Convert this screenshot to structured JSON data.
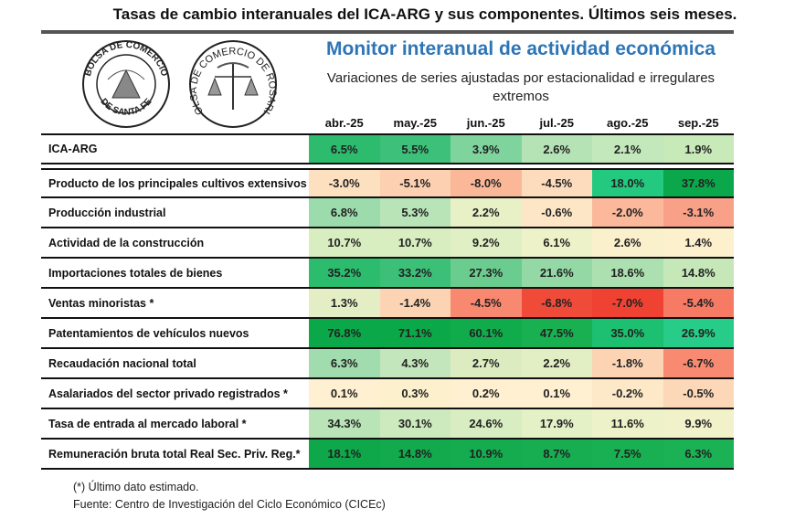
{
  "title": "Tasas de cambio interanuales del ICA-ARG y sus componentes. Últimos seis meses.",
  "logos": [
    {
      "name": "bolsa-santa-fe-logo",
      "top_text": "BOLSA DE COMERCIO",
      "bottom_text": "DE SANTA FE"
    },
    {
      "name": "bolsa-rosario-logo",
      "text": "BOLSA DE COMERCIO DE ROSARIO"
    }
  ],
  "monitor_title": "Monitor interanual de actividad económica",
  "monitor_title_color": "#2e75b6",
  "subtitle": "Variaciones de series ajustadas por estacionalidad e irregulares extremos",
  "months": [
    "abr.-25",
    "may.-25",
    "jun.-25",
    "jul.-25",
    "ago.-25",
    "sep.-25"
  ],
  "rows": [
    {
      "label": "ICA-ARG",
      "values": [
        "6.5%",
        "5.5%",
        "3.9%",
        "2.6%",
        "2.1%",
        "1.9%"
      ],
      "colors": [
        "#2dbb6e",
        "#3cc07a",
        "#7fd49e",
        "#b6e3b6",
        "#c3e8bc",
        "#c8eab8"
      ]
    },
    {
      "label": "Producto de los principales cultivos extensivos",
      "values": [
        "-3.0%",
        "-5.1%",
        "-8.0%",
        "-4.5%",
        "18.0%",
        "37.8%"
      ],
      "colors": [
        "#fde0c0",
        "#fcd0b0",
        "#fbb898",
        "#fcdcbc",
        "#22c97e",
        "#0aa84a"
      ]
    },
    {
      "label": "Producción industrial",
      "values": [
        "6.8%",
        "5.3%",
        "2.2%",
        "-0.6%",
        "-2.0%",
        "-3.1%"
      ],
      "colors": [
        "#9cdcac",
        "#b9e4b8",
        "#e8f0c6",
        "#fde6c6",
        "#fbb89a",
        "#f9a088"
      ]
    },
    {
      "label": "Actividad de la construcción",
      "values": [
        "10.7%",
        "10.7%",
        "9.2%",
        "6.1%",
        "2.6%",
        "1.4%"
      ],
      "colors": [
        "#d9eec0",
        "#d9eec0",
        "#e0f0c4",
        "#eef2c8",
        "#faf0cc",
        "#fdf0cc"
      ]
    },
    {
      "label": "Importaciones totales de bienes",
      "values": [
        "35.2%",
        "33.2%",
        "27.3%",
        "21.6%",
        "18.6%",
        "14.8%"
      ],
      "colors": [
        "#2cbc6e",
        "#3cc078",
        "#6acc8e",
        "#94d8a6",
        "#ace0b0",
        "#c6e8b8"
      ]
    },
    {
      "label": "Ventas minoristas *",
      "values": [
        "1.3%",
        "-1.4%",
        "-4.5%",
        "-6.8%",
        "-7.0%",
        "-5.4%"
      ],
      "colors": [
        "#e4eec4",
        "#fcd4b4",
        "#f88870",
        "#f04a38",
        "#f04232",
        "#f67a64"
      ]
    },
    {
      "label": "Patentamientos de vehículos nuevos",
      "values": [
        "76.8%",
        "71.1%",
        "60.1%",
        "47.5%",
        "35.0%",
        "26.9%"
      ],
      "colors": [
        "#0aa848",
        "#0aa848",
        "#10ac4c",
        "#18b050",
        "#1cc070",
        "#26cc88"
      ]
    },
    {
      "label": "Recaudación nacional total",
      "values": [
        "6.3%",
        "4.3%",
        "2.7%",
        "2.2%",
        "-1.8%",
        "-6.7%"
      ],
      "colors": [
        "#a0dcae",
        "#c4e6bc",
        "#dcecc0",
        "#e2eec4",
        "#fcd4b4",
        "#f88a72"
      ]
    },
    {
      "label": "Asalariados del sector privado registrados *",
      "values": [
        "0.1%",
        "0.3%",
        "0.2%",
        "0.1%",
        "-0.2%",
        "-0.5%"
      ],
      "colors": [
        "#fef0d0",
        "#fdf0cc",
        "#fef0d0",
        "#fef0d0",
        "#fde8c8",
        "#fcd8b8"
      ]
    },
    {
      "label": "Tasa de entrada al mercado laboral *",
      "values": [
        "34.3%",
        "30.1%",
        "24.6%",
        "17.9%",
        "11.6%",
        "9.9%"
      ],
      "colors": [
        "#b8e4b8",
        "#cceabe",
        "#d8eec2",
        "#e4f0c6",
        "#eef2c8",
        "#f2f2ca"
      ]
    },
    {
      "label": "Remuneración bruta total Real Sec. Priv. Reg.*",
      "values": [
        "18.1%",
        "14.8%",
        "10.9%",
        "8.7%",
        "7.5%",
        "6.3%"
      ],
      "colors": [
        "#0ea84a",
        "#12aa4c",
        "#14ac4e",
        "#16ae50",
        "#18b052",
        "#1ab254"
      ]
    }
  ],
  "footnote": "(*) Último dato estimado.",
  "source": "Fuente: Centro de Investigación del Ciclo Económico (CICEc)"
}
